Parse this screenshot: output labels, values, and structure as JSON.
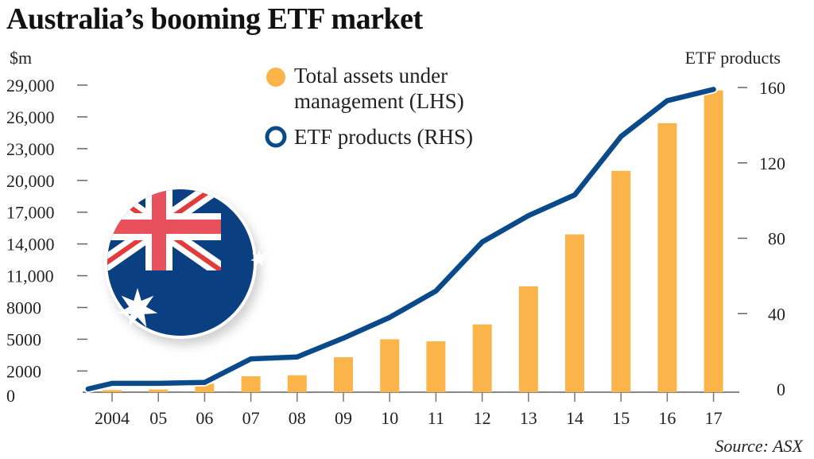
{
  "chart_data": {
    "type": "bar+line",
    "title": "Australia’s booming ETF market",
    "left_axis": {
      "label": "$m",
      "ticks": [
        "29,000",
        "26,000",
        "23,000",
        "20,000",
        "17,000",
        "14,000",
        "11,000",
        "8000",
        "5000",
        "2000",
        "0"
      ],
      "tick_values": [
        29000,
        26000,
        23000,
        20000,
        17000,
        14000,
        11000,
        8000,
        5000,
        2000,
        0
      ],
      "range": [
        0,
        29000
      ]
    },
    "right_axis": {
      "label": "ETF products",
      "ticks": [
        "160",
        "120",
        "80",
        "40",
        "0"
      ],
      "tick_values": [
        160,
        120,
        80,
        40,
        0
      ],
      "range": [
        0,
        160
      ]
    },
    "categories": [
      "2004",
      "05",
      "06",
      "07",
      "08",
      "09",
      "10",
      "11",
      "12",
      "13",
      "14",
      "15",
      "16",
      "17"
    ],
    "series": [
      {
        "name": "Total assets under management (LHS)",
        "type": "bar",
        "axis": "left",
        "color": "#fbb44a",
        "values": [
          200,
          250,
          800,
          1500,
          1600,
          3300,
          5000,
          4800,
          6400,
          10000,
          14900,
          20900,
          25400,
          28500
        ]
      },
      {
        "name": "ETF products (RHS)",
        "type": "line",
        "axis": "right",
        "color": "#0b4a8a",
        "x": [
          -0.5,
          0,
          1,
          2,
          3,
          4,
          5,
          6,
          7,
          8,
          9,
          10,
          11,
          12,
          13
        ],
        "values": [
          0,
          3,
          3,
          3.5,
          16,
          17,
          27,
          38,
          52,
          78,
          92,
          103,
          134,
          153,
          159
        ]
      }
    ],
    "legend": {
      "placement": "top-center",
      "items": [
        "Total assets under",
        "management (LHS)",
        "ETF products (RHS)"
      ]
    },
    "source": "Source: ASX"
  }
}
